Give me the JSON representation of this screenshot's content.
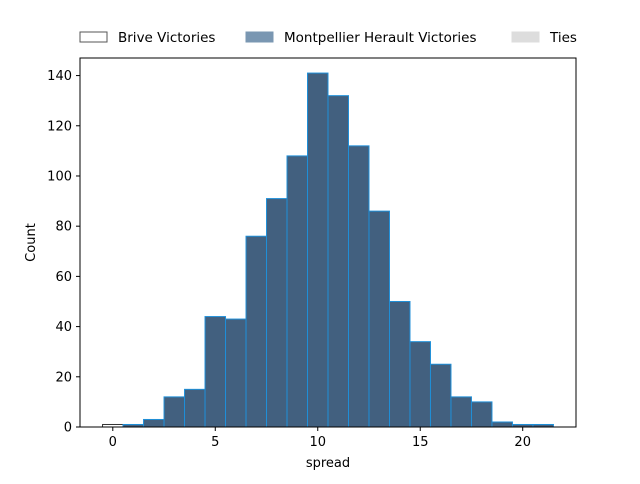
{
  "chart_data": {
    "type": "bar",
    "xlabel": "spread",
    "ylabel": "Count",
    "xlim": [
      -1.6,
      22.6
    ],
    "ylim": [
      0,
      147
    ],
    "xticks": [
      0,
      5,
      10,
      15,
      20
    ],
    "yticks": [
      0,
      20,
      40,
      60,
      80,
      100,
      120,
      140
    ],
    "legend": {
      "placement": "top, above plot",
      "entries": [
        {
          "label": "Brive Victories",
          "swatch": "#ffffff",
          "edge": "#555555"
        },
        {
          "label": "Montpellier Herault Victories",
          "swatch": "#7a97b2",
          "edge": "#7a97b2"
        },
        {
          "label": "Ties",
          "swatch": "#dddddd",
          "edge": "#dddddd"
        }
      ]
    },
    "series": [
      {
        "name": "Brive Victories",
        "color": "#ffffff",
        "edge": "#333333",
        "bins": [
          {
            "x0": -0.5,
            "x1": 0.5,
            "count": 1
          }
        ]
      },
      {
        "name": "Montpellier Herault Victories",
        "color": "#42607f",
        "edge": "#1f8fd8",
        "bins": [
          {
            "x0": 0.5,
            "x1": 1.5,
            "count": 1
          },
          {
            "x0": 1.5,
            "x1": 2.5,
            "count": 3
          },
          {
            "x0": 2.5,
            "x1": 3.5,
            "count": 12
          },
          {
            "x0": 3.5,
            "x1": 4.5,
            "count": 15
          },
          {
            "x0": 4.5,
            "x1": 5.5,
            "count": 44
          },
          {
            "x0": 5.5,
            "x1": 6.5,
            "count": 43
          },
          {
            "x0": 6.5,
            "x1": 7.5,
            "count": 76
          },
          {
            "x0": 7.5,
            "x1": 8.5,
            "count": 91
          },
          {
            "x0": 8.5,
            "x1": 9.5,
            "count": 108
          },
          {
            "x0": 9.5,
            "x1": 10.5,
            "count": 141
          },
          {
            "x0": 10.5,
            "x1": 11.5,
            "count": 132
          },
          {
            "x0": 11.5,
            "x1": 12.5,
            "count": 112
          },
          {
            "x0": 12.5,
            "x1": 13.5,
            "count": 86
          },
          {
            "x0": 13.5,
            "x1": 14.5,
            "count": 50
          },
          {
            "x0": 14.5,
            "x1": 15.5,
            "count": 34
          },
          {
            "x0": 15.5,
            "x1": 16.5,
            "count": 25
          },
          {
            "x0": 16.5,
            "x1": 17.5,
            "count": 12
          },
          {
            "x0": 17.5,
            "x1": 18.5,
            "count": 10
          },
          {
            "x0": 18.5,
            "x1": 19.5,
            "count": 2
          },
          {
            "x0": 19.5,
            "x1": 20.5,
            "count": 1
          },
          {
            "x0": 20.5,
            "x1": 21.5,
            "count": 1
          }
        ]
      }
    ]
  }
}
